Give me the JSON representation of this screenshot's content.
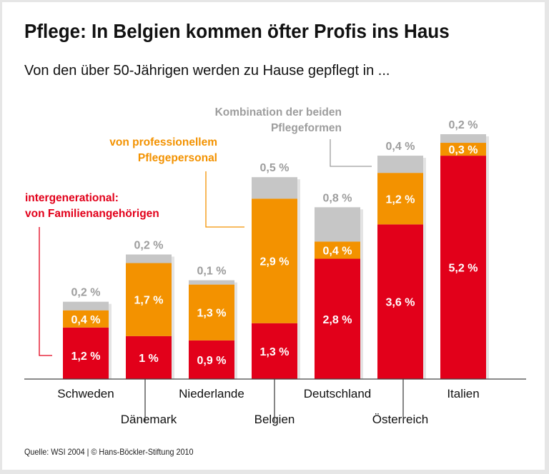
{
  "chart_data": {
    "type": "bar",
    "stacked": true,
    "title": "Pflege: In Belgien kommen öfter Profis ins Haus",
    "subtitle": "Von den über 50-Jährigen werden zu Hause gepflegt in ...",
    "categories": [
      "Schweden",
      "Dänemark",
      "Niederlande",
      "Belgien",
      "Deutschland",
      "Österreich",
      "Italien"
    ],
    "series": [
      {
        "name": "intergenerational: von Familienangehörigen",
        "color": "#e2001a",
        "values": [
          1.2,
          1.0,
          0.9,
          1.3,
          2.8,
          3.6,
          5.2
        ],
        "labels": [
          "1,2 %",
          "1 %",
          "0,9 %",
          "1,3 %",
          "2,8 %",
          "3,6 %",
          "5,2 %"
        ]
      },
      {
        "name": "von professionellem Pflegepersonal",
        "color": "#f39200",
        "values": [
          0.4,
          1.7,
          1.3,
          2.9,
          0.4,
          1.2,
          0.3
        ],
        "labels": [
          "0,4 %",
          "1,7 %",
          "1,3 %",
          "2,9 %",
          "0,4 %",
          "1,2 %",
          "0,3 %"
        ]
      },
      {
        "name": "Kombination der beiden Pflegeformen",
        "color": "#c6c6c6",
        "values": [
          0.2,
          0.2,
          0.1,
          0.5,
          0.8,
          0.4,
          0.2
        ],
        "labels": [
          "0,2 %",
          "0,2 %",
          "0,1 %",
          "0,5 %",
          "0,8 %",
          "0,4 %",
          "0,2 %"
        ]
      }
    ],
    "ylim": [
      0,
      5.7
    ],
    "grid": false,
    "legend": "annotations",
    "annotations": {
      "gray": [
        "Kombination der beiden",
        "Pflegeformen"
      ],
      "orange": [
        "von professionellem",
        "Pflegepersonal"
      ],
      "red": [
        "intergenerational:",
        "von Familienangehörigen"
      ]
    },
    "source": "Quelle: WSI 2004 | © Hans-Böckler-Stiftung 2010"
  }
}
